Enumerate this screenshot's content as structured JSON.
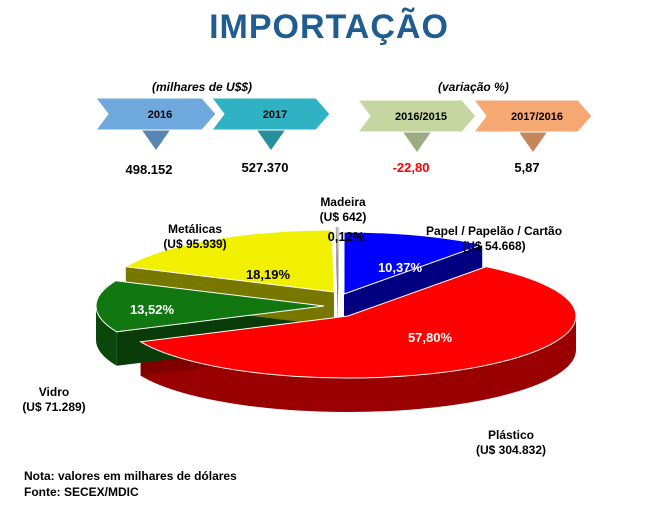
{
  "title": "IMPORTAÇÃO",
  "header": {
    "left_caption": "(milhares de U$$)",
    "right_caption": "(variação %)",
    "badges": [
      {
        "label": "2016",
        "value": "498.152",
        "color": "#6fa8dc",
        "value_color": "#000000"
      },
      {
        "label": "2017",
        "value": "527.370",
        "color": "#2fb3c4",
        "value_color": "#000000"
      },
      {
        "label": "2016/2015",
        "value": "-22,80",
        "color": "#c5d6a0",
        "value_color": "#ff0000"
      },
      {
        "label": "2017/2016",
        "value": "5,87",
        "color": "#f6a872",
        "value_color": "#000000"
      }
    ]
  },
  "chart_data": {
    "type": "pie",
    "slices": [
      {
        "name": "Papel / Papelão / Cartão",
        "value_label": "(U$ 54.668)",
        "value": 54668,
        "percent": 10.37,
        "percent_label": "10,37%",
        "color": "#0000ff"
      },
      {
        "name": "Plástico",
        "value_label": "(U$ 304.832)",
        "value": 304832,
        "percent": 57.8,
        "percent_label": "57,80%",
        "color": "#ff0000"
      },
      {
        "name": "Vidro",
        "value_label": "(U$ 71.289)",
        "value": 71289,
        "percent": 13.52,
        "percent_label": "13,52%",
        "color": "#117711"
      },
      {
        "name": "Metálicas",
        "value_label": "(U$ 95.939)",
        "value": 95939,
        "percent": 18.19,
        "percent_label": "18,19%",
        "color": "#f0f000"
      },
      {
        "name": "Madeira",
        "value_label": "(U$ 642)",
        "value": 642,
        "percent": 0.12,
        "percent_label": "0,12%",
        "color": "#ffffff"
      }
    ]
  },
  "notes": {
    "nota": "Nota: valores em milhares de dólares",
    "fonte": "Fonte: SECEX/MDIC"
  }
}
